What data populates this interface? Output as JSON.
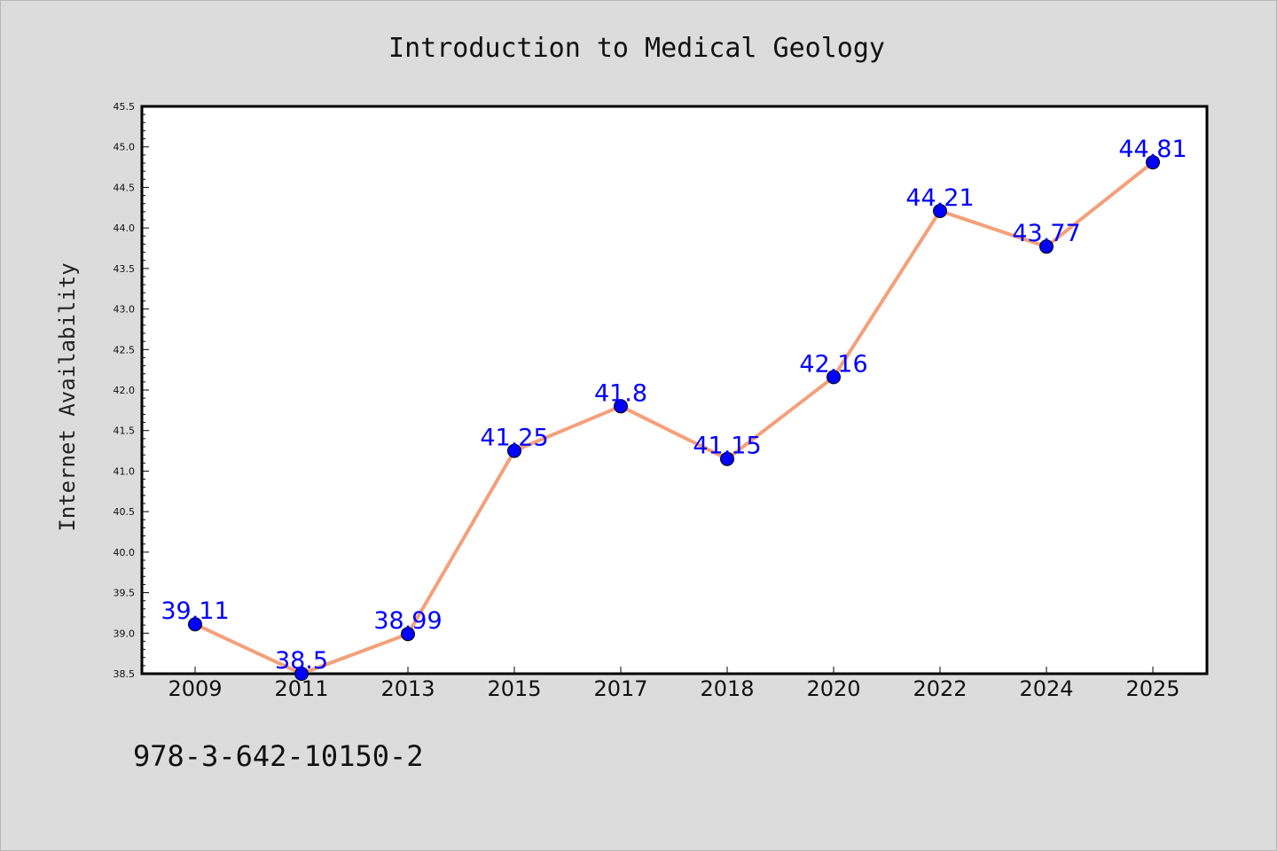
{
  "chart_data": {
    "type": "line",
    "title": "Introduction to Medical Geology",
    "xlabel": "",
    "ylabel": "Internet Availability",
    "categories": [
      "2009",
      "2011",
      "2013",
      "2015",
      "2017",
      "2018",
      "2020",
      "2022",
      "2024",
      "2025"
    ],
    "series": [
      {
        "values": [
          39.11,
          38.5,
          38.99,
          41.25,
          41.8,
          41.15,
          42.16,
          44.21,
          43.77,
          44.81
        ],
        "labels": [
          "39.11",
          "38.5",
          "38.99",
          "41.25",
          "41.8",
          "41.15",
          "42.16",
          "44.21",
          "43.77",
          "44.81"
        ],
        "line_color": "#f4a07a",
        "marker_color": "#0000ff"
      }
    ],
    "ylim": [
      38.5,
      45.5
    ],
    "yticks": [
      "38.5",
      "39.0",
      "39.5",
      "40.0",
      "40.5",
      "41.0",
      "41.5",
      "42.0",
      "42.5",
      "43.0",
      "43.5",
      "44.0",
      "44.5",
      "45.0",
      "45.5"
    ],
    "grid": false,
    "legend": "none"
  },
  "footer": {
    "isbn": "978-3-642-10150-2"
  },
  "colors": {
    "background": "#dcdcdc",
    "plot_background": "#ffffff",
    "axes": "#000000"
  }
}
